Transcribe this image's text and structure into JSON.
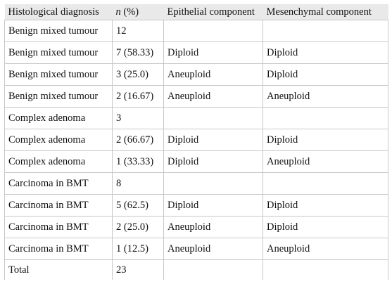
{
  "table": {
    "headers": {
      "diagnosis": "Histological diagnosis",
      "n_italic": "n",
      "n_rest": " (%)",
      "epithelial": "Epithelial component",
      "mesenchymal": "Mesenchymal component"
    },
    "rows": [
      {
        "diagnosis": "Benign mixed tumour",
        "n": "12",
        "epithelial": "",
        "mesenchymal": ""
      },
      {
        "diagnosis": "Benign mixed tumour",
        "n": "7 (58.33)",
        "epithelial": "Diploid",
        "mesenchymal": "Diploid"
      },
      {
        "diagnosis": "Benign mixed tumour",
        "n": "3 (25.0)",
        "epithelial": "Aneuploid",
        "mesenchymal": "Diploid"
      },
      {
        "diagnosis": "Benign mixed tumour",
        "n": "2 (16.67)",
        "epithelial": "Aneuploid",
        "mesenchymal": "Aneuploid"
      },
      {
        "diagnosis": "Complex adenoma",
        "n": "3",
        "epithelial": "",
        "mesenchymal": ""
      },
      {
        "diagnosis": "Complex adenoma",
        "n": "2 (66.67)",
        "epithelial": "Diploid",
        "mesenchymal": "Diploid"
      },
      {
        "diagnosis": "Complex adenoma",
        "n": "1 (33.33)",
        "epithelial": "Diploid",
        "mesenchymal": "Aneuploid"
      },
      {
        "diagnosis": "Carcinoma in BMT",
        "n": "8",
        "epithelial": "",
        "mesenchymal": ""
      },
      {
        "diagnosis": "Carcinoma in BMT",
        "n": "5 (62.5)",
        "epithelial": "Diploid",
        "mesenchymal": "Diploid"
      },
      {
        "diagnosis": "Carcinoma in BMT",
        "n": "2 (25.0)",
        "epithelial": "Aneuploid",
        "mesenchymal": "Diploid"
      },
      {
        "diagnosis": "Carcinoma in BMT",
        "n": "1 (12.5)",
        "epithelial": "Aneuploid",
        "mesenchymal": "Aneuploid"
      },
      {
        "diagnosis": "Total",
        "n": "23",
        "epithelial": "",
        "mesenchymal": ""
      }
    ]
  }
}
